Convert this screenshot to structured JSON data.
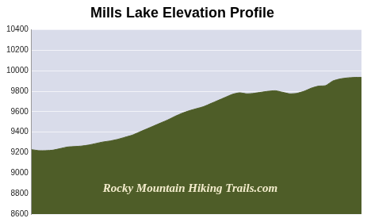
{
  "chart_data": {
    "type": "area",
    "title": "Mills Lake Elevation Profile",
    "annotation": "Rocky Mountain Hiking Trails.com",
    "categories": [
      null,
      null,
      null,
      null,
      null,
      null,
      null,
      null,
      null,
      null,
      null,
      null,
      null,
      null,
      null,
      null,
      null,
      null,
      null,
      null,
      null,
      null,
      null,
      null,
      null,
      null,
      null,
      null,
      null,
      null,
      null,
      null,
      null,
      null,
      null,
      null,
      null,
      null,
      null,
      null,
      null,
      null,
      null,
      null,
      null,
      null,
      null
    ],
    "values": [
      9230,
      9220,
      9220,
      9225,
      9240,
      9255,
      9260,
      9265,
      9275,
      9290,
      9305,
      9315,
      9330,
      9350,
      9370,
      9400,
      9430,
      9460,
      9490,
      9520,
      9555,
      9585,
      9610,
      9630,
      9650,
      9680,
      9710,
      9740,
      9770,
      9785,
      9775,
      9780,
      9790,
      9800,
      9805,
      9790,
      9775,
      9780,
      9800,
      9830,
      9850,
      9855,
      9900,
      9920,
      9930,
      9935,
      9935
    ],
    "color": "#4e5d28",
    "ylim": [
      8600,
      10400
    ],
    "yticks": [
      8600,
      8800,
      9000,
      9200,
      9400,
      9600,
      9800,
      10000,
      10200,
      10400
    ],
    "grid": true,
    "tick_labels": "y"
  }
}
